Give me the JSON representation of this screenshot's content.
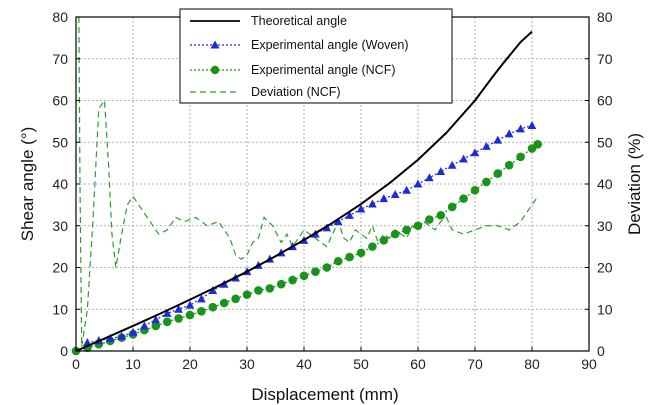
{
  "chart_data": {
    "type": "line",
    "xlabel": "Displacement (mm)",
    "ylabel": "Shear angle (°)",
    "ylabel_right": "Deviation (%)",
    "xlim": [
      0,
      90
    ],
    "ylim": [
      0,
      80
    ],
    "ylim_right": [
      0,
      80
    ],
    "xticks": [
      "0",
      "10",
      "20",
      "30",
      "40",
      "50",
      "60",
      "70",
      "80",
      "90"
    ],
    "yticks": [
      "0",
      "10",
      "20",
      "30",
      "40",
      "50",
      "60",
      "70",
      "80"
    ],
    "yticks_right": [
      "0",
      "10",
      "20",
      "30",
      "40",
      "50",
      "60",
      "70",
      "80"
    ],
    "grid": true,
    "legend_position": "top-center",
    "series": [
      {
        "name": "Theoretical angle",
        "style": "solid",
        "color": "#000000",
        "axis": "left",
        "x": [
          0,
          5,
          10,
          15,
          20,
          25,
          30,
          35,
          40,
          45,
          50,
          55,
          60,
          65,
          70,
          73,
          75,
          78,
          80
        ],
        "y": [
          0,
          3.0,
          6.0,
          9.1,
          12.3,
          15.6,
          19.0,
          22.7,
          26.6,
          30.7,
          35.2,
          40.2,
          45.8,
          52.3,
          60.0,
          65.5,
          69.0,
          74.0,
          76.5
        ]
      },
      {
        "name": "Experimental angle (Woven)",
        "style": "dotted-triangle",
        "color": "#1f2bd6",
        "axis": "left",
        "x": [
          2,
          4,
          6,
          8,
          10,
          12,
          14,
          16,
          18,
          20,
          22,
          24,
          26,
          28,
          30,
          32,
          34,
          36,
          38,
          40,
          42,
          44,
          46,
          48,
          50,
          52,
          54,
          56,
          58,
          60,
          62,
          64,
          66,
          68,
          70,
          72,
          74,
          76,
          78,
          80
        ],
        "y": [
          2.0,
          2.5,
          3.0,
          3.5,
          4.5,
          6.0,
          7.5,
          9.0,
          10.0,
          11.0,
          12.5,
          14.5,
          16.0,
          17.5,
          19.0,
          20.5,
          22.0,
          23.5,
          25.0,
          26.5,
          28.0,
          29.5,
          31.0,
          32.5,
          34.0,
          35.2,
          36.5,
          37.5,
          38.5,
          40.0,
          41.5,
          43.0,
          44.5,
          46.0,
          47.5,
          49.0,
          50.5,
          52.0,
          53.2,
          54.0
        ]
      },
      {
        "name": "Experimental angle (NCF)",
        "style": "dotted-circle",
        "color": "#189418",
        "axis": "left",
        "x": [
          0,
          2,
          4,
          6,
          8,
          10,
          12,
          14,
          16,
          18,
          20,
          22,
          24,
          26,
          28,
          30,
          32,
          34,
          36,
          38,
          40,
          42,
          44,
          46,
          48,
          50,
          52,
          54,
          56,
          58,
          60,
          62,
          64,
          66,
          68,
          70,
          72,
          74,
          76,
          78,
          80,
          81
        ],
        "y": [
          0,
          0.8,
          1.6,
          2.4,
          3.2,
          4.0,
          5.0,
          6.0,
          7.0,
          7.8,
          8.6,
          9.5,
          10.5,
          11.5,
          12.5,
          13.5,
          14.5,
          15.0,
          16.0,
          17.0,
          18.0,
          19.0,
          20.0,
          21.5,
          22.5,
          23.5,
          25.0,
          26.5,
          28.0,
          29.0,
          30.0,
          31.5,
          32.5,
          34.5,
          36.5,
          38.5,
          40.5,
          42.5,
          44.5,
          46.5,
          48.5,
          49.5
        ]
      },
      {
        "name": "Deviation (NCF)",
        "style": "dashed",
        "color": "#2e9e2e",
        "axis": "right",
        "x": [
          0.5,
          0.7,
          1.0,
          2.0,
          3.0,
          4.0,
          5.0,
          5.7,
          6.3,
          7.0,
          8.0,
          9.0,
          10.0,
          11.5,
          13.0,
          14.5,
          16.0,
          17.5,
          19.0,
          21.0,
          23.0,
          25.0,
          27.0,
          28.0,
          29.0,
          30.0,
          31.0,
          32.0,
          33.0,
          34.5,
          36.0,
          37.0,
          38.0,
          39.0,
          40.0,
          41.0,
          42.0,
          43.0,
          44.0,
          45.0,
          46.0,
          47.0,
          48.0,
          49.0,
          50.0,
          51.0,
          52.0,
          53.0,
          54.0,
          55.0,
          56.0,
          57.0,
          58.0,
          59.0,
          60.0,
          61.0,
          62.0,
          63.0,
          64.0,
          65.0,
          66.0,
          68.0,
          70.0,
          72.0,
          74.0,
          76.0,
          77.0,
          78.0,
          79.0,
          80.0,
          81.0
        ],
        "y": [
          80,
          40,
          1,
          10,
          32,
          58,
          60,
          45,
          28,
          20,
          28,
          35,
          37,
          34,
          31,
          28,
          29,
          32,
          31,
          32,
          30,
          31,
          27,
          23,
          22,
          23,
          26,
          27,
          32,
          30,
          26,
          28,
          25,
          27,
          29,
          28,
          27,
          26,
          25,
          28,
          31,
          27,
          26,
          29,
          28,
          27,
          30,
          26,
          28,
          27,
          29,
          28,
          27,
          30,
          29,
          31,
          30,
          29,
          31,
          32,
          29,
          28,
          29,
          30,
          30,
          29,
          30,
          31,
          33,
          35,
          37
        ]
      }
    ]
  }
}
